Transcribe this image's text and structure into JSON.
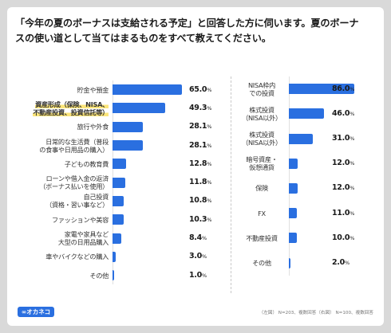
{
  "title": "「今年の夏のボーナスは支給される予定」と回答した方に伺います。夏のボーナスの使い道として当てはまるものをすべて教えてください。",
  "logo_text": "∞オカネコ",
  "footnote": "（左図） N=203、複数回答（右図） N=100、複数回答",
  "colors": {
    "bar": "#2a6fe0",
    "highlight": "#fbe57a"
  },
  "chart_data": [
    {
      "type": "bar",
      "orientation": "horizontal",
      "unit": "%",
      "xlim": [
        0,
        65
      ],
      "categories": [
        "貯金や預金",
        "資産形成（保険、NISA、不動産投資、投資信託等）",
        "旅行や外食",
        "日常的な生活費（普段の食事や日用品の購入）",
        "子どもの教育費",
        "ローンや借入金の返済（ボーナス払いを使用）",
        "自己投資（資格・習い事など）",
        "ファッションや美容",
        "家電や家具など大型の日用品購入",
        "車やバイクなどの購入",
        "その他"
      ],
      "label_lines": [
        [
          "貯金や預金"
        ],
        [
          "資産形成（保険、NISA、",
          "不動産投資、投資信託等）"
        ],
        [
          "旅行や外食"
        ],
        [
          "日常的な生活費（普段",
          "の食事や日用品の購入）"
        ],
        [
          "子どもの教育費"
        ],
        [
          "ローンや借入金の返済",
          "（ボーナス払いを使用）"
        ],
        [
          "自己投資",
          "（資格・習い事など）"
        ],
        [
          "ファッションや美容"
        ],
        [
          "家電や家具など",
          "大型の日用品購入"
        ],
        [
          "車やバイクなどの購入"
        ],
        [
          "その他"
        ]
      ],
      "highlighted": [
        1
      ],
      "values": [
        65.0,
        49.3,
        28.1,
        28.1,
        12.8,
        11.8,
        10.8,
        10.3,
        8.4,
        3.0,
        1.0
      ]
    },
    {
      "type": "bar",
      "orientation": "horizontal",
      "unit": "%",
      "xlim": [
        0,
        86
      ],
      "categories": [
        "NISA枠内での投資",
        "株式投資（NISA以外）",
        "株式投資（NISA以外）",
        "暗号資産・仮想通貨",
        "保険",
        "FX",
        "不動産投資",
        "その他"
      ],
      "label_lines": [
        [
          "NISA枠内",
          "での投資"
        ],
        [
          "株式投資",
          "（NISA以外）"
        ],
        [
          "株式投資",
          "（NISA以外）"
        ],
        [
          "暗号資産・",
          "仮想通貨"
        ],
        [
          "保険"
        ],
        [
          "FX"
        ],
        [
          "不動産投資"
        ],
        [
          "その他"
        ]
      ],
      "highlighted": [],
      "values": [
        86.0,
        46.0,
        31.0,
        12.0,
        12.0,
        11.0,
        10.0,
        2.0
      ]
    }
  ]
}
